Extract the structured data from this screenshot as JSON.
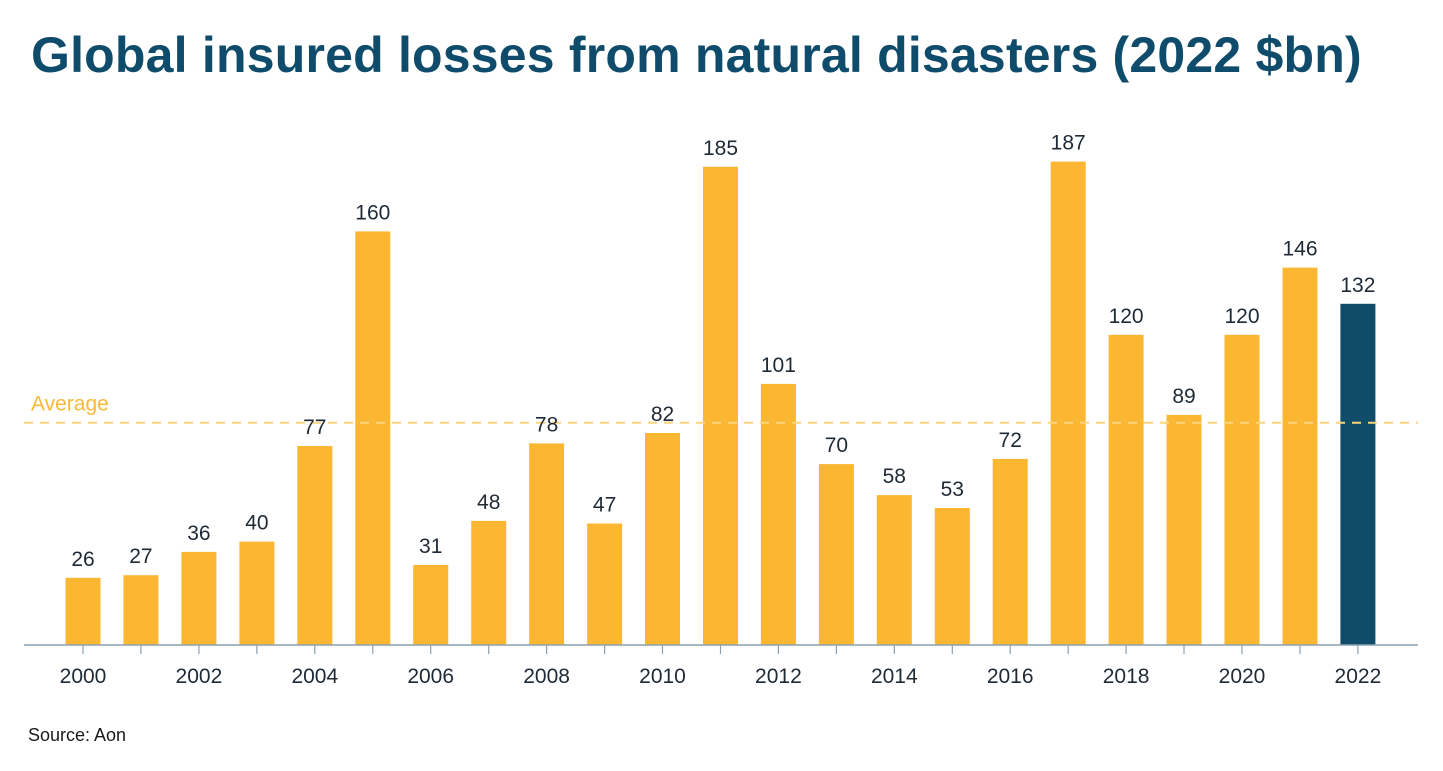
{
  "header": {
    "title": "Global insured losses from natural disasters (2022 $bn)"
  },
  "footer": {
    "source": "Source: Aon"
  },
  "colors": {
    "title": "#0f4c6b",
    "bar": "#fbb731",
    "highlight_bar": "#0e4c6a",
    "average_line": "#fbd57e",
    "average_label": "#f9b938",
    "axis": "#8aa1b1",
    "text": "#1f2a36"
  },
  "chart_data": {
    "type": "bar",
    "title": "Global insured losses from natural disasters (2022 $bn)",
    "xlabel": "",
    "ylabel": "",
    "categories": [
      "2000",
      "2001",
      "2002",
      "2003",
      "2004",
      "2005",
      "2006",
      "2007",
      "2008",
      "2009",
      "2010",
      "2011",
      "2012",
      "2013",
      "2014",
      "2015",
      "2016",
      "2017",
      "2018",
      "2019",
      "2020",
      "2021",
      "2022"
    ],
    "values": [
      26,
      27,
      36,
      40,
      77,
      160,
      31,
      48,
      78,
      47,
      82,
      185,
      101,
      70,
      58,
      53,
      72,
      187,
      120,
      89,
      120,
      146,
      132
    ],
    "value_labels": [
      "26",
      "27",
      "36",
      "40",
      "77",
      "160",
      "31",
      "48",
      "78",
      "47",
      "82",
      "185",
      "101",
      "70",
      "58",
      "53",
      "72",
      "187",
      "120",
      "89",
      "120",
      "146",
      "132"
    ],
    "x_tick_labels": [
      "2000",
      "2002",
      "2004",
      "2006",
      "2008",
      "2010",
      "2012",
      "2014",
      "2016",
      "2018",
      "2020",
      "2022"
    ],
    "highlight_category": "2022",
    "average": {
      "label": "Average",
      "value": 86
    },
    "ylim": [
      0,
      200
    ],
    "grid": false,
    "legend": "none"
  }
}
